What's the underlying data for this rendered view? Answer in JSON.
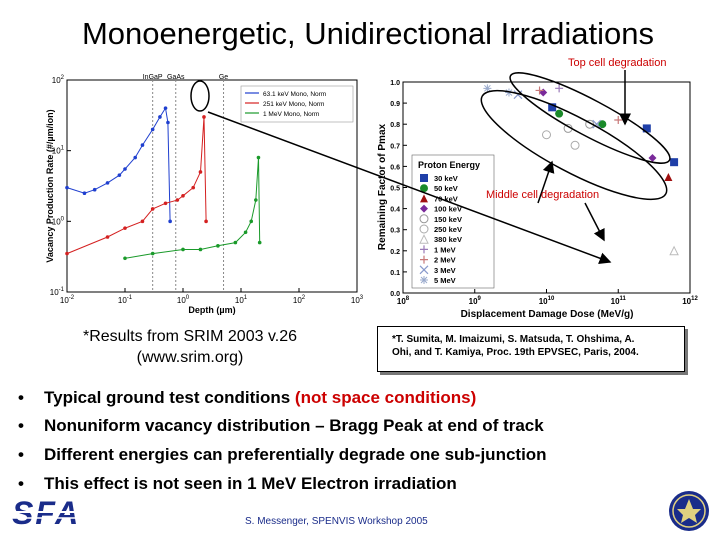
{
  "title": "Monoenergetic, Unidirectional Irradiations",
  "annotations": {
    "top_cell": "Top cell degradation",
    "middle_cell": "Middle cell degradation"
  },
  "srim_note": {
    "line1": "*Results from SRIM 2003 v.26",
    "line2": "(www.srim.org)"
  },
  "citation": {
    "line1": "*T. Sumita, M. Imaizumi, S. Matsuda, T. Ohshima, A.",
    "line2": "Ohi, and T. Kamiya, Proc. 19th EPVSEC, Paris, 2004."
  },
  "bullets": [
    {
      "text": "Typical ground test conditions ",
      "highlight": "(not space conditions)"
    },
    {
      "text": "Nonuniform vacancy distribution – Bragg Peak at end of track",
      "highlight": ""
    },
    {
      "text": "Different energies can preferentially degrade one sub-junction",
      "highlight": ""
    },
    {
      "text": "This effect is not seen in 1 MeV Electron irradiation",
      "highlight": ""
    }
  ],
  "bullet_char": "•",
  "footer": "S. Messenger, SPENVIS Workshop 2005",
  "logo_text": "SFA",
  "colors": {
    "accent_red": "#cc0000",
    "footer_blue": "#1a2c8a",
    "logo_blue": "#1a2c8a"
  },
  "chart_data": [
    {
      "type": "line",
      "xlabel": "Depth (µm)",
      "ylabel": "Vacancy Production Rate (#/µm/ion)",
      "xscale": "log",
      "yscale": "log",
      "xlim": [
        0.01,
        1000
      ],
      "ylim": [
        0.1,
        100
      ],
      "xticks": [
        "10-2",
        "10-1",
        "100",
        "101",
        "102",
        "103"
      ],
      "yticks": [
        "102",
        "101",
        "100",
        "10-1"
      ],
      "layer_labels": [
        "InGaP",
        "GaAs",
        "Ge"
      ],
      "legend_position": "top-right",
      "series": [
        {
          "name": "63.1 keV Mono, Norm",
          "color": "#1f3fcf",
          "x": [
            0.01,
            0.02,
            0.03,
            0.05,
            0.08,
            0.1,
            0.15,
            0.2,
            0.3,
            0.4,
            0.5,
            0.55,
            0.6
          ],
          "y": [
            3.0,
            2.5,
            2.8,
            3.5,
            4.5,
            5.5,
            8.0,
            12.0,
            20.0,
            30.0,
            40.0,
            25.0,
            1.0
          ]
        },
        {
          "name": "251 keV Mono, Norm",
          "color": "#d42020",
          "x": [
            0.01,
            0.05,
            0.1,
            0.2,
            0.3,
            0.5,
            0.8,
            1.0,
            1.5,
            2.0,
            2.3,
            2.5
          ],
          "y": [
            0.35,
            0.6,
            0.8,
            1.0,
            1.5,
            1.8,
            2.0,
            2.3,
            3.0,
            5.0,
            30.0,
            1.0
          ]
        },
        {
          "name": "1 MeV Mono, Norm",
          "color": "#1a9a2a",
          "x": [
            0.1,
            0.3,
            1.0,
            2.0,
            4.0,
            8.0,
            12.0,
            15.0,
            18.0,
            20.0,
            21.0
          ],
          "y": [
            0.3,
            0.35,
            0.4,
            0.4,
            0.45,
            0.5,
            0.7,
            1.0,
            2.0,
            8.0,
            0.5
          ]
        }
      ]
    },
    {
      "type": "scatter",
      "xlabel": "Displacement Damage Dose (MeV/g)",
      "ylabel": "Remaining Factor of Pmax",
      "xscale": "log",
      "xlim": [
        100000000,
        1000000000000
      ],
      "ylim": [
        0.0,
        1.0
      ],
      "xticks": [
        "108",
        "109",
        "1010",
        "1011",
        "1012"
      ],
      "yticks": [
        "1.0",
        "0.9",
        "0.8",
        "0.7",
        "0.6",
        "0.5",
        "0.4",
        "0.3",
        "0.2",
        "0.1",
        "0.0"
      ],
      "legend_title": "Proton Energy",
      "legend_position": "right",
      "series": [
        {
          "name": "30 keV",
          "color": "#1f3fa8",
          "x": [
            12000000000.0,
            250000000000.0,
            600000000000.0
          ],
          "y": [
            0.88,
            0.78,
            0.62
          ]
        },
        {
          "name": "50 keV",
          "color": "#1a8a2a",
          "x": [
            15000000000.0,
            60000000000.0
          ],
          "y": [
            0.85,
            0.8
          ]
        },
        {
          "name": "70 keV",
          "color": "#a01010",
          "x": [
            500000000000.0
          ],
          "y": [
            0.55
          ]
        },
        {
          "name": "100 keV",
          "color": "#7a2a9a",
          "x": [
            9000000000.0,
            300000000000.0
          ],
          "y": [
            0.95,
            0.64
          ]
        },
        {
          "name": "150 keV",
          "color": "#999999",
          "x": [
            20000000000.0,
            40000000000.0
          ],
          "y": [
            0.78,
            0.8
          ]
        },
        {
          "name": "250 keV",
          "color": "#aaaaaa",
          "x": [
            10000000000.0,
            25000000000.0
          ],
          "y": [
            0.75,
            0.7
          ]
        },
        {
          "name": "380 keV",
          "color": "#bbbbbb",
          "x": [
            600000000000.0
          ],
          "y": [
            0.2
          ]
        },
        {
          "name": "1 MeV",
          "color": "#9a7ab8",
          "x": [
            15000000000.0
          ],
          "y": [
            0.97
          ]
        },
        {
          "name": "2 MeV",
          "color": "#c87878",
          "x": [
            8000000000.0,
            100000000000.0
          ],
          "y": [
            0.96,
            0.82
          ]
        },
        {
          "name": "3 MeV",
          "color": "#8899cc",
          "x": [
            4000000000.0,
            50000000000.0
          ],
          "y": [
            0.94,
            0.8
          ]
        },
        {
          "name": "5 MeV",
          "color": "#99aacc",
          "x": [
            1500000000.0,
            3000000000.0
          ],
          "y": [
            0.97,
            0.95
          ]
        }
      ]
    }
  ]
}
